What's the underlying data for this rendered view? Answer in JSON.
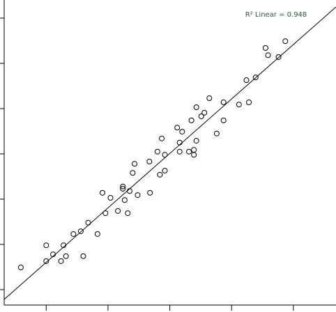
{
  "chart_data": {
    "type": "scatter",
    "annotation": "R² Linear = 0.948",
    "annotation_color": "#1f5f2f",
    "color": "#000000",
    "x": [
      0.59,
      1.0,
      1.0,
      1.11,
      1.24,
      1.28,
      1.32,
      1.44,
      1.56,
      1.6,
      1.68,
      1.83,
      1.91,
      1.96,
      2.04,
      2.16,
      2.24,
      2.24,
      2.27,
      2.32,
      2.35,
      2.4,
      2.43,
      2.48,
      2.68,
      2.67,
      2.8,
      2.84,
      2.87,
      2.92,
      2.92,
      3.12,
      3.16,
      3.16,
      3.2,
      3.31,
      3.35,
      3.39,
      3.39,
      3.43,
      3.43,
      3.51,
      3.56,
      3.64,
      3.76,
      3.87,
      3.87,
      4.12,
      4.24,
      4.28,
      4.39,
      4.55,
      4.59,
      4.76,
      4.87
    ],
    "values": [
      1.49,
      1.98,
      1.63,
      1.78,
      1.63,
      1.98,
      1.74,
      2.23,
      2.29,
      1.74,
      2.48,
      2.23,
      3.14,
      2.69,
      3.03,
      2.74,
      3.28,
      3.23,
      2.98,
      2.69,
      3.18,
      3.58,
      3.78,
      3.09,
      3.14,
      3.83,
      4.05,
      3.54,
      4.34,
      3.98,
      3.63,
      4.58,
      4.25,
      4.05,
      4.49,
      4.05,
      4.74,
      4.09,
      3.98,
      4.29,
      5.03,
      4.83,
      4.91,
      5.23,
      4.45,
      5.14,
      4.74,
      5.09,
      5.63,
      5.14,
      5.69,
      6.34,
      6.18,
      6.14,
      6.49
    ],
    "fit_line": {
      "x": [
        0.32,
        5.69
      ],
      "y": [
        0.785,
        7.246
      ],
      "color": "#000000"
    },
    "xlim": [
      0.32,
      5.69
    ],
    "ylim": [
      0.66,
      7.4
    ],
    "xticks": [
      1,
      2,
      3,
      4,
      5
    ],
    "yticks": [
      1,
      2,
      3,
      4,
      5,
      6,
      7
    ]
  }
}
